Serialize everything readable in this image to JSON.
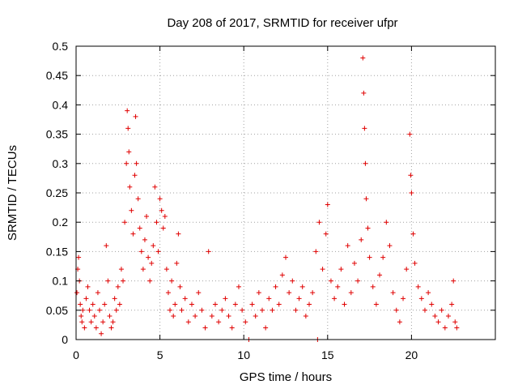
{
  "chart_data": {
    "type": "scatter",
    "title": "Day 208 of 2017, SRMTID for receiver ufpr",
    "xlabel": "GPS time / hours",
    "ylabel": "SRMTID / TECUs",
    "xlim": [
      0,
      25
    ],
    "ylim": [
      0,
      0.5
    ],
    "grid": true,
    "marker": "+",
    "marker_color": "#e00000",
    "x_ticks": [
      0,
      5,
      10,
      15,
      20
    ],
    "x_tick_labels": [
      "0",
      "5",
      "10",
      "15",
      "20"
    ],
    "y_ticks": [
      0,
      0.05,
      0.1,
      0.15,
      0.2,
      0.25,
      0.3,
      0.35,
      0.4,
      0.45,
      0.5
    ],
    "y_tick_labels": [
      "0",
      "0.05",
      "0.1",
      "0.15",
      "0.2",
      "0.25",
      "0.3",
      "0.35",
      "0.4",
      "0.45",
      "0.5"
    ],
    "series": [
      {
        "name": "SRMTID",
        "points": [
          [
            0.05,
            0.08
          ],
          [
            0.1,
            0.12
          ],
          [
            0.15,
            0.14
          ],
          [
            0.2,
            0.1
          ],
          [
            0.25,
            0.06
          ],
          [
            0.3,
            0.04
          ],
          [
            0.35,
            0.03
          ],
          [
            0.4,
            0.05
          ],
          [
            0.5,
            0.02
          ],
          [
            0.6,
            0.07
          ],
          [
            0.7,
            0.09
          ],
          [
            0.8,
            0.05
          ],
          [
            0.9,
            0.03
          ],
          [
            1.0,
            0.06
          ],
          [
            1.1,
            0.04
          ],
          [
            1.2,
            0.02
          ],
          [
            1.3,
            0.08
          ],
          [
            1.4,
            0.05
          ],
          [
            1.5,
            0.01
          ],
          [
            1.6,
            0.03
          ],
          [
            1.7,
            0.06
          ],
          [
            1.8,
            0.16
          ],
          [
            1.9,
            0.1
          ],
          [
            2.0,
            0.04
          ],
          [
            2.1,
            0.02
          ],
          [
            2.2,
            0.03
          ],
          [
            2.3,
            0.07
          ],
          [
            2.4,
            0.05
          ],
          [
            2.5,
            0.09
          ],
          [
            2.6,
            0.06
          ],
          [
            2.7,
            0.12
          ],
          [
            2.8,
            0.1
          ],
          [
            2.9,
            0.2
          ],
          [
            3.0,
            0.3
          ],
          [
            3.05,
            0.39
          ],
          [
            3.1,
            0.36
          ],
          [
            3.15,
            0.32
          ],
          [
            3.2,
            0.26
          ],
          [
            3.3,
            0.22
          ],
          [
            3.4,
            0.18
          ],
          [
            3.5,
            0.28
          ],
          [
            3.55,
            0.38
          ],
          [
            3.6,
            0.3
          ],
          [
            3.7,
            0.24
          ],
          [
            3.8,
            0.19
          ],
          [
            3.9,
            0.15
          ],
          [
            4.0,
            0.12
          ],
          [
            4.1,
            0.17
          ],
          [
            4.2,
            0.21
          ],
          [
            4.3,
            0.14
          ],
          [
            4.4,
            0.1
          ],
          [
            4.5,
            0.13
          ],
          [
            4.6,
            0.16
          ],
          [
            4.7,
            0.26
          ],
          [
            4.8,
            0.2
          ],
          [
            4.9,
            0.15
          ],
          [
            5.0,
            0.24
          ],
          [
            5.1,
            0.22
          ],
          [
            5.2,
            0.19
          ],
          [
            5.3,
            0.21
          ],
          [
            5.4,
            0.12
          ],
          [
            5.5,
            0.08
          ],
          [
            5.6,
            0.05
          ],
          [
            5.7,
            0.1
          ],
          [
            5.8,
            0.04
          ],
          [
            5.9,
            0.06
          ],
          [
            6.0,
            0.13
          ],
          [
            6.1,
            0.18
          ],
          [
            6.2,
            0.09
          ],
          [
            6.3,
            0.05
          ],
          [
            6.5,
            0.07
          ],
          [
            6.7,
            0.03
          ],
          [
            6.9,
            0.06
          ],
          [
            7.1,
            0.04
          ],
          [
            7.3,
            0.08
          ],
          [
            7.5,
            0.05
          ],
          [
            7.7,
            0.02
          ],
          [
            7.9,
            0.15
          ],
          [
            8.1,
            0.04
          ],
          [
            8.3,
            0.06
          ],
          [
            8.5,
            0.03
          ],
          [
            8.7,
            0.05
          ],
          [
            8.9,
            0.07
          ],
          [
            9.1,
            0.04
          ],
          [
            9.3,
            0.02
          ],
          [
            9.5,
            0.06
          ],
          [
            9.7,
            0.09
          ],
          [
            9.9,
            0.05
          ],
          [
            10.1,
            0.03
          ],
          [
            10.3,
            0.0
          ],
          [
            10.5,
            0.06
          ],
          [
            10.7,
            0.04
          ],
          [
            10.9,
            0.08
          ],
          [
            11.1,
            0.05
          ],
          [
            11.3,
            0.02
          ],
          [
            11.5,
            0.07
          ],
          [
            11.7,
            0.05
          ],
          [
            11.9,
            0.09
          ],
          [
            12.1,
            0.06
          ],
          [
            12.3,
            0.11
          ],
          [
            12.5,
            0.14
          ],
          [
            12.7,
            0.08
          ],
          [
            12.9,
            0.1
          ],
          [
            13.1,
            0.05
          ],
          [
            13.3,
            0.07
          ],
          [
            13.5,
            0.09
          ],
          [
            13.7,
            0.04
          ],
          [
            13.9,
            0.06
          ],
          [
            14.1,
            0.08
          ],
          [
            14.3,
            0.15
          ],
          [
            14.4,
            0.0
          ],
          [
            14.5,
            0.2
          ],
          [
            14.7,
            0.12
          ],
          [
            14.9,
            0.18
          ],
          [
            15.0,
            0.23
          ],
          [
            15.2,
            0.1
          ],
          [
            15.4,
            0.07
          ],
          [
            15.6,
            0.09
          ],
          [
            15.8,
            0.12
          ],
          [
            16.0,
            0.06
          ],
          [
            16.2,
            0.16
          ],
          [
            16.4,
            0.08
          ],
          [
            16.6,
            0.13
          ],
          [
            16.8,
            0.1
          ],
          [
            17.0,
            0.17
          ],
          [
            17.1,
            0.48
          ],
          [
            17.15,
            0.42
          ],
          [
            17.2,
            0.36
          ],
          [
            17.25,
            0.3
          ],
          [
            17.3,
            0.24
          ],
          [
            17.4,
            0.19
          ],
          [
            17.5,
            0.14
          ],
          [
            17.7,
            0.09
          ],
          [
            17.9,
            0.06
          ],
          [
            18.1,
            0.11
          ],
          [
            18.3,
            0.14
          ],
          [
            18.5,
            0.2
          ],
          [
            18.7,
            0.16
          ],
          [
            18.9,
            0.08
          ],
          [
            19.1,
            0.05
          ],
          [
            19.3,
            0.03
          ],
          [
            19.5,
            0.07
          ],
          [
            19.7,
            0.12
          ],
          [
            19.9,
            0.35
          ],
          [
            19.95,
            0.28
          ],
          [
            20.0,
            0.25
          ],
          [
            20.1,
            0.18
          ],
          [
            20.2,
            0.13
          ],
          [
            20.4,
            0.09
          ],
          [
            20.6,
            0.07
          ],
          [
            20.8,
            0.05
          ],
          [
            21.0,
            0.08
          ],
          [
            21.2,
            0.06
          ],
          [
            21.4,
            0.04
          ],
          [
            21.6,
            0.03
          ],
          [
            21.8,
            0.05
          ],
          [
            22.0,
            0.02
          ],
          [
            22.2,
            0.04
          ],
          [
            22.4,
            0.06
          ],
          [
            22.5,
            0.1
          ],
          [
            22.6,
            0.03
          ],
          [
            22.7,
            0.02
          ]
        ]
      }
    ]
  }
}
